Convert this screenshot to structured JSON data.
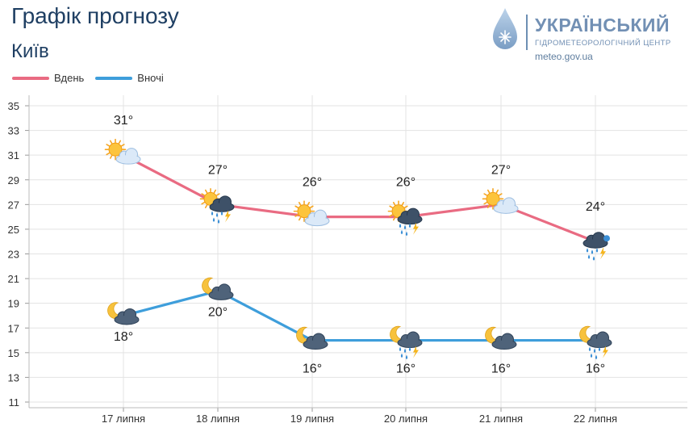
{
  "header": {
    "title": "Графік прогнозу",
    "city": "Київ"
  },
  "logo": {
    "line1": "УКРАЇНСЬКИЙ",
    "line2": "ГІДРОМЕТЕОРОЛОГІЧНИЙ ЦЕНТР",
    "line3": "meteo.gov.ua"
  },
  "legend": [
    {
      "name": "Вдень",
      "color": "#e96b82"
    },
    {
      "name": "Вночі",
      "color": "#3e9edb"
    }
  ],
  "chart_data": {
    "type": "line",
    "categories": [
      "17 липня",
      "18 липня",
      "19 липня",
      "20 липня",
      "21 липня",
      "22 липня"
    ],
    "ylim": [
      11,
      35
    ],
    "yticks": [
      "11",
      "13",
      "15",
      "17",
      "19",
      "21",
      "23",
      "25",
      "27",
      "29",
      "31",
      "33",
      "35"
    ],
    "grid": true,
    "legend_position": "top-left",
    "series": [
      {
        "name": "Вдень",
        "color": "#e96b82",
        "values": [
          31,
          27,
          26,
          26,
          27,
          24
        ],
        "labels": [
          "31°",
          "27°",
          "26°",
          "26°",
          "27°",
          "24°"
        ],
        "icons": [
          "sun-cloud-icon",
          "sun-storm-rain-icon",
          "sun-cloud-icon",
          "sun-storm-rain-icon",
          "sun-cloud-icon",
          "storm-rain-icon"
        ]
      },
      {
        "name": "Вночі",
        "color": "#3e9edb",
        "values": [
          18,
          20,
          16,
          16,
          16,
          16
        ],
        "labels": [
          "18°",
          "20°",
          "16°",
          "16°",
          "16°",
          "16°"
        ],
        "icons": [
          "moon-cloud-icon",
          "moon-cloud-icon",
          "moon-cloud-icon",
          "moon-storm-rain-icon",
          "moon-cloud-icon",
          "moon-storm-rain-icon"
        ]
      }
    ]
  }
}
